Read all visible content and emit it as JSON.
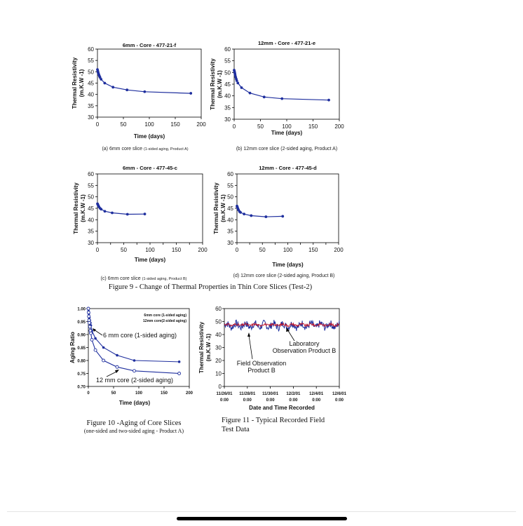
{
  "figure9_caption": "Figure 9 - Change of Thermal Properties in Thin Core Slices (Test-2)",
  "figure10_caption": "Figure 10 -Aging of Core Slices",
  "figure10_subcaption": "(one-sided and two-sided aging - Product A)",
  "figure11_caption_line1": "Figure 11 - Typical Recorded Field",
  "figure11_caption_line2": "Test Data",
  "colors": {
    "series": "#1f2f9e",
    "axis": "#000000",
    "lab": "#c0152a",
    "field": "#000000"
  },
  "chart_data": [
    {
      "id": "a",
      "type": "line",
      "title": "6mm - Core - 477-21-f",
      "xlabel": "Time (days)",
      "ylabel_lines": [
        "Thermal Resistivity",
        "(m.K.W -1)"
      ],
      "subcaption_main": "(a) 6mm core slice",
      "subcaption_small": "(1-sided aging, Product A)",
      "xlim": [
        0,
        200
      ],
      "ylim": [
        30,
        60
      ],
      "xticks": [
        0,
        50,
        100,
        150,
        200
      ],
      "yticks": [
        30,
        35,
        40,
        45,
        50,
        55,
        60
      ],
      "x": [
        0,
        0.5,
        1,
        1.5,
        2,
        3,
        4,
        5,
        7,
        14,
        30,
        57,
        91,
        180
      ],
      "y": [
        51,
        50.5,
        50,
        49.5,
        49.2,
        48.6,
        48,
        47.5,
        46.7,
        45,
        43.2,
        42,
        41.2,
        40.5
      ]
    },
    {
      "id": "b",
      "type": "line",
      "title": "12mm - Core - 477-21-e",
      "xlabel": "Time (days)",
      "ylabel_lines": [
        "Thermal Resistivity",
        "(m.K.W -1)"
      ],
      "subcaption_main": "(b) 12mm core slice (2-sided aging, Product A)",
      "subcaption_small": "",
      "xlim": [
        0,
        200
      ],
      "ylim": [
        30,
        60
      ],
      "xticks": [
        0,
        50,
        100,
        150,
        200
      ],
      "yticks": [
        30,
        35,
        40,
        45,
        50,
        55,
        60
      ],
      "x": [
        0,
        0.5,
        1,
        1.5,
        2,
        3,
        4,
        5,
        7,
        14,
        30,
        57,
        91,
        180
      ],
      "y": [
        51,
        50.5,
        50,
        49.5,
        48.8,
        48,
        47.2,
        46.5,
        45.5,
        43.5,
        41.2,
        39.5,
        38.8,
        38.2
      ]
    },
    {
      "id": "c",
      "type": "line",
      "title": "6mm - Core - 477-45-c",
      "xlabel": "Time (days)",
      "ylabel_lines": [
        "Thermal Resistivity",
        "(m.K.W -1)"
      ],
      "subcaption_main": "(c) 6mm core slice",
      "subcaption_small": "(1-sided aging, Product B)",
      "xlim": [
        0,
        200
      ],
      "ylim": [
        30,
        60
      ],
      "xticks": [
        0,
        25,
        50,
        75,
        100,
        125,
        150,
        175,
        200
      ],
      "xticklabels": [
        "0",
        "",
        "50",
        "",
        "100",
        "",
        "150",
        "",
        "200"
      ],
      "yticks": [
        30,
        35,
        40,
        45,
        50,
        55,
        60
      ],
      "x": [
        0,
        0.5,
        1,
        2,
        3,
        5,
        7,
        14,
        28,
        57,
        90
      ],
      "y": [
        47,
        46.8,
        46.5,
        46,
        45.6,
        45,
        44.6,
        43.7,
        43,
        42.4,
        42.5
      ]
    },
    {
      "id": "d",
      "type": "line",
      "title": "12mm - Core - 477-45-d",
      "xlabel": "Time (days)",
      "ylabel_lines": [
        "Thermal Resistivity",
        "(m.K.W -1)"
      ],
      "subcaption_main": "(d) 12mm core slice (2-sided aging, Product B)",
      "subcaption_small": "",
      "xlim": [
        0,
        200
      ],
      "ylim": [
        30,
        60
      ],
      "xticks": [
        0,
        25,
        50,
        75,
        100,
        125,
        150,
        175,
        200
      ],
      "xticklabels": [
        "0",
        "",
        "50",
        "",
        "100",
        "",
        "150",
        "",
        "200"
      ],
      "yticks": [
        30,
        35,
        40,
        45,
        50,
        55,
        60
      ],
      "x": [
        0,
        0.5,
        1,
        2,
        3,
        5,
        7,
        14,
        28,
        57,
        90
      ],
      "y": [
        46,
        45.7,
        45.4,
        44.8,
        44.3,
        43.6,
        43.2,
        42.5,
        41.8,
        41.3,
        41.5
      ]
    },
    {
      "id": "aging",
      "type": "line",
      "title": "",
      "xlabel": "Time (days)",
      "ylabel": "Aging Ratio",
      "xlim": [
        0,
        200
      ],
      "ylim": [
        0.7,
        1.0
      ],
      "xticks": [
        0,
        50,
        100,
        150,
        200
      ],
      "yticks": [
        0.7,
        0.75,
        0.8,
        0.85,
        0.9,
        0.95,
        1.0
      ],
      "yticklabels": [
        "0.70",
        "0.75",
        "0.80",
        "0.85",
        "0.90",
        "0.95",
        "1.00"
      ],
      "legend": [
        "6mm core (1-sided aging)",
        "12mm core(2-sided aging)"
      ],
      "annotation_6mm": "6 mm core (1-sided aging)",
      "annotation_12mm": "12 mm core (2-sided aging)",
      "series": [
        {
          "name": "6mm core (1-sided aging)",
          "marker": "filled",
          "x": [
            0,
            0.5,
            1,
            1.5,
            2,
            3,
            4,
            5,
            7,
            14,
            30,
            57,
            91,
            180
          ],
          "y": [
            1.0,
            0.99,
            0.98,
            0.97,
            0.965,
            0.955,
            0.945,
            0.935,
            0.915,
            0.885,
            0.85,
            0.82,
            0.8,
            0.795
          ]
        },
        {
          "name": "12mm core(2-sided aging)",
          "marker": "open",
          "x": [
            0,
            0.5,
            1,
            1.5,
            2,
            3,
            4,
            5,
            7,
            14,
            30,
            57,
            91,
            180
          ],
          "y": [
            1.0,
            0.985,
            0.97,
            0.955,
            0.945,
            0.93,
            0.915,
            0.905,
            0.88,
            0.84,
            0.8,
            0.775,
            0.76,
            0.75
          ]
        }
      ]
    },
    {
      "id": "field",
      "type": "line",
      "title": "",
      "xlabel": "Date and Time Recorded",
      "ylabel_lines": [
        "Thermal Resistivity",
        "(m.K.W -1)"
      ],
      "ylim": [
        0,
        60
      ],
      "yticks": [
        0,
        10,
        20,
        30,
        40,
        50,
        60
      ],
      "xcategories": [
        "11/26/01 0:00",
        "11/28/01 0:00",
        "11/30/01 0:00",
        "12/2/01 0:00",
        "12/4/01 0:00",
        "12/6/01 0:00"
      ],
      "annotation_lab": [
        "Laboratory",
        "Observation Product B"
      ],
      "annotation_field": [
        "Field Observation",
        "Product B"
      ],
      "series": [
        {
          "name": "Laboratory Observation Product B",
          "mean": 47.5,
          "amp": 1.2
        },
        {
          "name": "Field Observation Product B",
          "mean": 47,
          "amp": 3.5
        }
      ]
    }
  ]
}
